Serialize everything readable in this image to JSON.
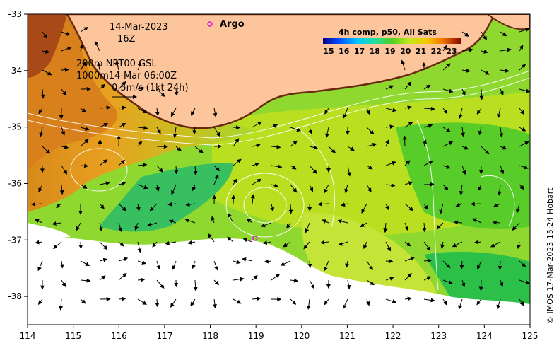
{
  "map": {
    "date_text": "14-Mar-2023",
    "time_text": "16Z",
    "contour_line_1": "200m  NRT00 GSL",
    "contour_line_2": "1000m14-Mar 06:00Z",
    "arrow_scale_label": "0.5m/s (1kt 24h)",
    "argo_label": "Argo",
    "colorbar_title": "4h comp, p50, All Sats",
    "colorbar_ticks": [
      "15",
      "16",
      "17",
      "18",
      "19",
      "20",
      "21",
      "22",
      "23"
    ],
    "credit": "© IMOS 17-Mar-2023 15:24 Hobart",
    "x_ticks": [
      "114",
      "115",
      "116",
      "117",
      "118",
      "119",
      "120",
      "121",
      "122",
      "123",
      "124",
      "125"
    ],
    "y_ticks": [
      "-33",
      "-34",
      "-35",
      "-36",
      "-37",
      "-38"
    ],
    "lon_range": [
      114,
      125
    ],
    "lat_range": [
      -33,
      -38.5
    ],
    "argo_floats": [
      {
        "lon": 118.0,
        "lat": -33.2
      },
      {
        "lon": 118.98,
        "lat": -36.97
      }
    ],
    "colors": {
      "land": "#fcc59b",
      "coast": "#6b2a10",
      "cloud": "#ffffff",
      "argo": "#e020d0",
      "colorbar": [
        "#00008f",
        "#0050ff",
        "#00c8ff",
        "#20e0a0",
        "#50d020",
        "#c0e820",
        "#f8c800",
        "#f07000",
        "#c00000",
        "#800000"
      ]
    }
  }
}
